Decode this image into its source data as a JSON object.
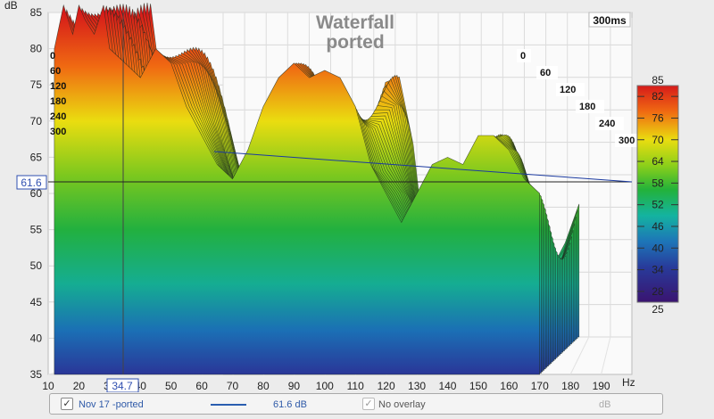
{
  "chart_data": {
    "type": "area",
    "title": "Waterfall",
    "subtitle": "ported",
    "ylabel": "dB",
    "xlabel": "",
    "x_unit": "Hz",
    "xlim": [
      10,
      200
    ],
    "ylim": [
      35,
      85
    ],
    "x_ticks": [
      "10",
      "20",
      "30",
      "40",
      "50",
      "60",
      "70",
      "80",
      "90",
      "100",
      "110",
      "120",
      "130",
      "140",
      "150",
      "160",
      "170",
      "180",
      "190"
    ],
    "y_ticks": [
      "35",
      "40",
      "45",
      "50",
      "55",
      "60",
      "65",
      "70",
      "75",
      "80",
      "85"
    ],
    "time_axis_label": "300ms",
    "time_ticks": [
      "0",
      "60",
      "120",
      "180",
      "240",
      "300"
    ],
    "time_ticks_left": [
      "0",
      "60",
      "120",
      "180",
      "240",
      "300"
    ],
    "cursor": {
      "x": "34.7",
      "y": "61.6"
    },
    "colorbar": {
      "max_label": "85",
      "min_label": "25",
      "ticks": [
        "82",
        "76",
        "70",
        "64",
        "58",
        "52",
        "46",
        "40",
        "34",
        "28"
      ]
    },
    "slice_x": [
      12,
      15,
      18,
      20,
      22,
      25,
      28,
      30,
      35,
      40,
      45,
      50,
      55,
      60,
      65,
      70,
      75,
      80,
      85,
      90,
      95,
      100,
      105,
      110,
      115,
      120,
      125,
      130,
      135,
      140,
      145,
      150,
      155,
      160,
      165,
      170
    ],
    "front_slice_db": [
      80,
      86,
      82,
      86,
      84,
      82,
      86,
      80,
      78,
      76,
      80,
      78,
      72,
      68,
      64,
      62,
      66,
      72,
      76,
      78,
      76,
      77,
      76,
      72,
      64,
      60,
      56,
      60,
      64,
      65,
      64,
      68,
      68,
      66,
      62,
      60
    ],
    "series": [
      {
        "name": "Nov 17 -ported",
        "value_label": "61.6 dB"
      }
    ],
    "overlay_label": "No overlay",
    "overlay_unit": "dB"
  }
}
